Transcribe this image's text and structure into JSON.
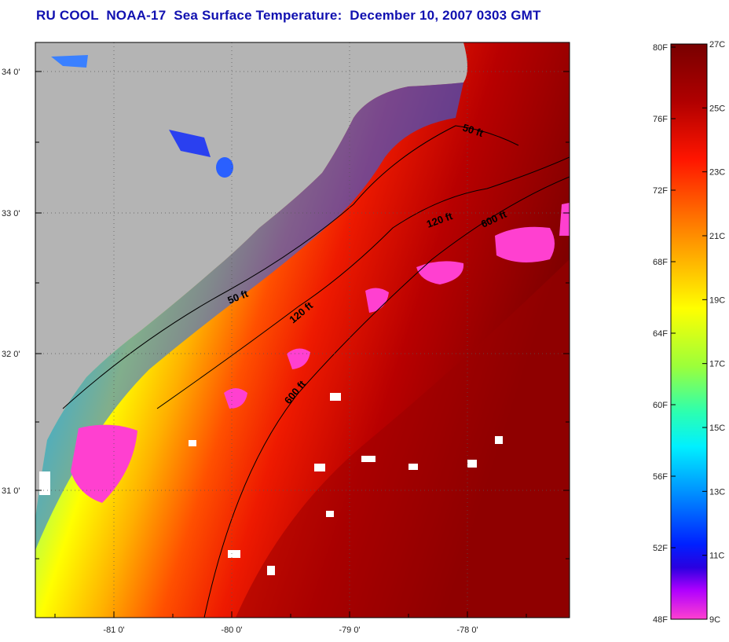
{
  "title": "RU COOL  NOAA-17  Sea Surface Temperature:  December 10, 2007 0303 GMT",
  "map": {
    "lat_ticks": [
      "34 0'",
      "33 0'",
      "32 0'",
      "31 0'"
    ],
    "lon_ticks": [
      "-81 0'",
      "-80 0'",
      "-79 0'",
      "-78 0'"
    ],
    "contours": [
      {
        "label": "50 ft"
      },
      {
        "label": "50 ft"
      },
      {
        "label": "120 ft"
      },
      {
        "label": "120 ft"
      },
      {
        "label": "600 ft"
      },
      {
        "label": "600 ft"
      }
    ],
    "land_color": "#b4b4b4"
  },
  "colorbar": {
    "fahrenheit": [
      "80F",
      "76F",
      "72F",
      "68F",
      "64F",
      "60F",
      "56F",
      "52F",
      "48F"
    ],
    "celsius": [
      "27C",
      "25C",
      "23C",
      "21C",
      "19C",
      "17C",
      "15C",
      "13C",
      "11C",
      "9C"
    ],
    "colors": [
      "#7a0000",
      "#c00000",
      "#ff1a00",
      "#ff7a00",
      "#ffd000",
      "#ffff00",
      "#9cff3a",
      "#2cffb0",
      "#00e8ff",
      "#008cff",
      "#0022ff",
      "#2a00e0",
      "#b000ff",
      "#ff40d0"
    ]
  }
}
